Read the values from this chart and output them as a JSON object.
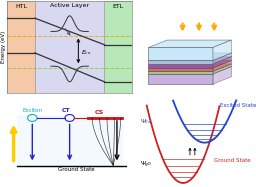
{
  "bg_color": "#ffffff",
  "border_color": "#888888",
  "panel_tl": {
    "htl_color": "#f5c8a8",
    "active_color": "#d8d8f0",
    "etl_color": "#b8e8b8",
    "title_htl": "HTL",
    "title_al": "Active Layer",
    "title_etl": "ETL",
    "ylabel": "Energy (eV)",
    "fermi1_color": "#ddaa00",
    "fermi2_color": "#88cc44",
    "band_color": "#333333",
    "e_cs_label": "$E_{cs}$"
  },
  "panel_tr": {
    "arrow_color": "#ffaa00",
    "top_color": "#c8e8f8",
    "layer_colors": [
      "#cce8fa",
      "#a8c0e0",
      "#e06868",
      "#9955bb",
      "#a8d8a0",
      "#c8b0e0"
    ],
    "edge_color": "#555555"
  },
  "panel_bl": {
    "exciton_color": "#00bbbb",
    "ct_color": "#2222cc",
    "cs_color": "#cc1111",
    "arrow_up_color": "#ffcc00",
    "ground_color": "#000000",
    "bg_rect_color": "#d0e8f8"
  },
  "panel_br": {
    "excited_color": "#2244cc",
    "ground_color": "#cc2222",
    "psi_ex_label": "$\\Psi_{Ex}$",
    "psi_g0_label": "$\\Psi_{g0}$",
    "excited_label": "Excited State",
    "ground_label": "Ground State"
  }
}
